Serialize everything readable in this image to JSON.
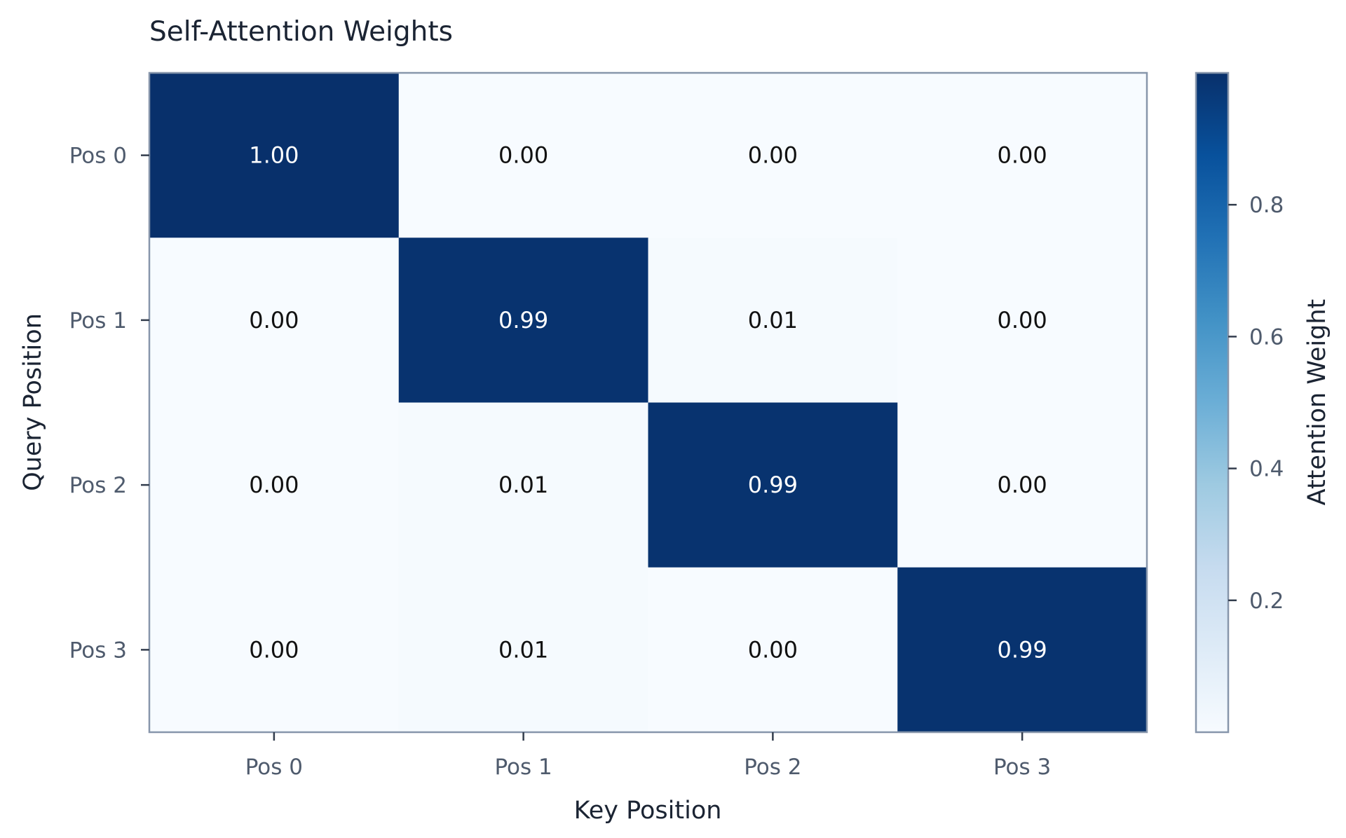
{
  "chart_data": {
    "type": "heatmap",
    "title": "Self-Attention Weights",
    "xlabel": "Key Position",
    "ylabel": "Query Position",
    "x_categories": [
      "Pos 0",
      "Pos 1",
      "Pos 2",
      "Pos 3"
    ],
    "y_categories": [
      "Pos 0",
      "Pos 1",
      "Pos 2",
      "Pos 3"
    ],
    "values": [
      [
        1.0,
        0.0,
        0.0,
        0.0
      ],
      [
        0.0,
        0.99,
        0.01,
        0.0
      ],
      [
        0.0,
        0.01,
        0.99,
        0.0
      ],
      [
        0.0,
        0.01,
        0.0,
        0.99
      ]
    ],
    "value_labels": [
      [
        "1.00",
        "0.00",
        "0.00",
        "0.00"
      ],
      [
        "0.00",
        "0.99",
        "0.01",
        "0.00"
      ],
      [
        "0.00",
        "0.01",
        "0.99",
        "0.00"
      ],
      [
        "0.00",
        "0.01",
        "0.00",
        "0.99"
      ]
    ],
    "colormap": "Blues",
    "colorbar": {
      "label": "Attention Weight",
      "ticks": [
        0.2,
        0.4,
        0.6,
        0.8
      ],
      "tick_labels": [
        "0.2",
        "0.4",
        "0.6",
        "0.8"
      ],
      "range": [
        0.0,
        1.0
      ]
    },
    "colors": {
      "low": "#f7fbff",
      "high": "#08306b",
      "text_dark": "#111111",
      "text_light": "#ffffff",
      "axis": "#8796ab"
    }
  }
}
